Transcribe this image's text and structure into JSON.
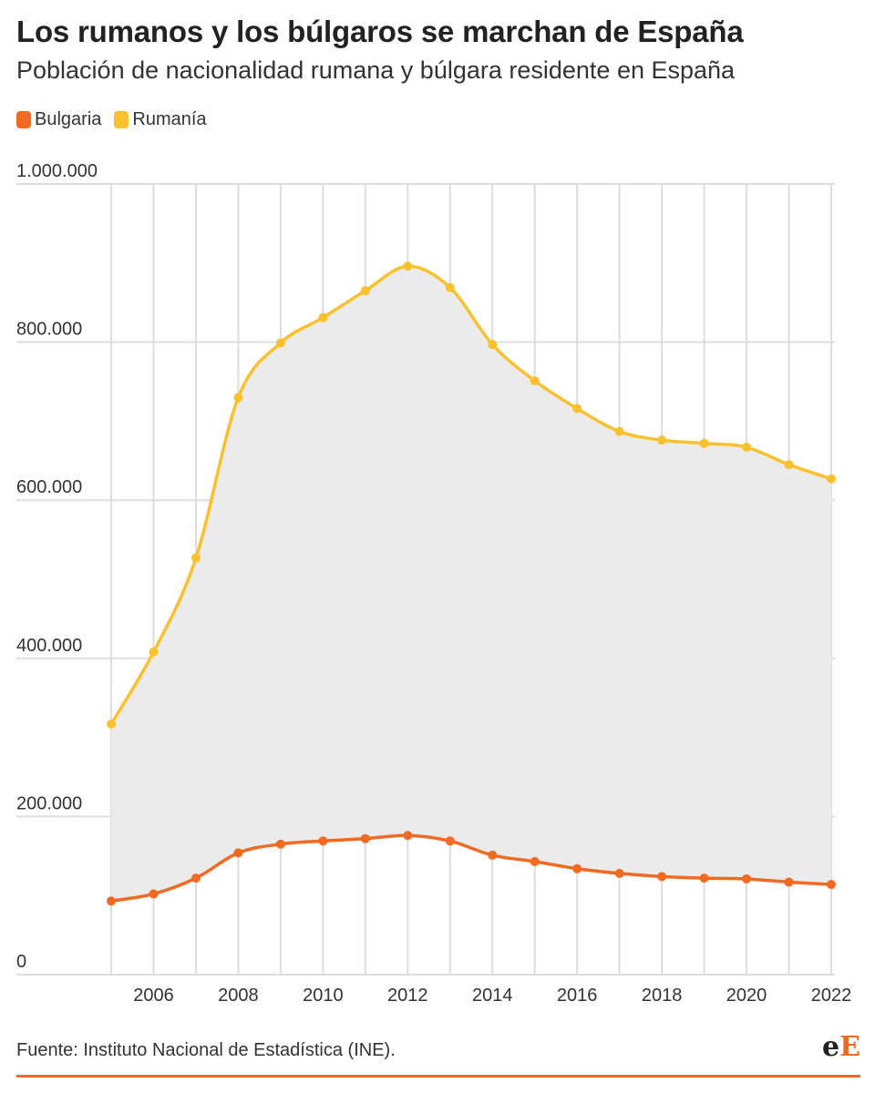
{
  "header": {
    "title": "Los rumanos y los búlgaros se marchan de España",
    "subtitle": "Población de nacionalidad rumana y búlgara residente en España"
  },
  "legend": [
    {
      "label": "Bulgaria",
      "color": "#f26a21"
    },
    {
      "label": "Rumanía",
      "color": "#fbc02d"
    }
  ],
  "footer": {
    "source": "Fuente: Instituto Nacional de Estadística (INE).",
    "logo_main": "e",
    "logo_accent": "E"
  },
  "colors": {
    "bulgaria": "#f26a21",
    "rumania": "#fbc02d",
    "fill_between": "#ebebeb",
    "grid": "#dddddd",
    "accent": "#f26a21"
  },
  "chart_data": {
    "type": "line",
    "title": "Los rumanos y los búlgaros se marchan de España",
    "subtitle": "Población de nacionalidad rumana y búlgara residente en España",
    "x": [
      2005,
      2006,
      2007,
      2008,
      2009,
      2010,
      2011,
      2012,
      2013,
      2014,
      2015,
      2016,
      2017,
      2018,
      2019,
      2020,
      2021,
      2022
    ],
    "x_tick_labels": [
      "2006",
      "2008",
      "2010",
      "2012",
      "2014",
      "2016",
      "2018",
      "2020",
      "2022"
    ],
    "y_tick_labels": [
      "0",
      "200.000",
      "400.000",
      "600.000",
      "800.000",
      "1.000.000"
    ],
    "y_ticks": [
      0,
      200000,
      400000,
      600000,
      800000,
      1000000
    ],
    "ylim": [
      0,
      1000000
    ],
    "xlim": [
      2005,
      2022
    ],
    "grid": true,
    "legend_position": "top-left",
    "fill_between_series": true,
    "series": [
      {
        "name": "Bulgaria",
        "color": "#f26a21",
        "values": [
          93000,
          102000,
          122000,
          154000,
          165000,
          169000,
          172000,
          176000,
          169000,
          151000,
          143000,
          134000,
          128000,
          124000,
          122000,
          121000,
          117000,
          114000
        ]
      },
      {
        "name": "Rumanía",
        "color": "#fbc02d",
        "values": [
          317000,
          408000,
          527000,
          730000,
          799000,
          831000,
          865000,
          896000,
          869000,
          797000,
          751000,
          716000,
          687000,
          676000,
          672000,
          667000,
          645000,
          627000
        ]
      }
    ]
  }
}
